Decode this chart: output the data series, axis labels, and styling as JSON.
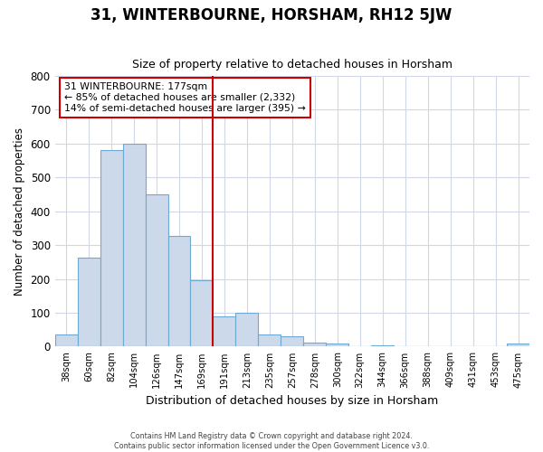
{
  "title": "31, WINTERBOURNE, HORSHAM, RH12 5JW",
  "subtitle": "Size of property relative to detached houses in Horsham",
  "xlabel": "Distribution of detached houses by size in Horsham",
  "ylabel": "Number of detached properties",
  "bar_labels": [
    "38sqm",
    "60sqm",
    "82sqm",
    "104sqm",
    "126sqm",
    "147sqm",
    "169sqm",
    "191sqm",
    "213sqm",
    "235sqm",
    "257sqm",
    "278sqm",
    "300sqm",
    "322sqm",
    "344sqm",
    "366sqm",
    "388sqm",
    "409sqm",
    "431sqm",
    "453sqm",
    "475sqm"
  ],
  "bar_heights": [
    35,
    263,
    580,
    600,
    450,
    327,
    195,
    90,
    100,
    35,
    30,
    12,
    10,
    0,
    5,
    0,
    0,
    0,
    0,
    0,
    8
  ],
  "bar_color": "#ccd9ea",
  "bar_edge_color": "#6fa8d0",
  "vline_x_idx": 7,
  "vline_color": "#cc0000",
  "ylim": [
    0,
    800
  ],
  "yticks": [
    0,
    100,
    200,
    300,
    400,
    500,
    600,
    700,
    800
  ],
  "annotation_text": "31 WINTERBOURNE: 177sqm\n← 85% of detached houses are smaller (2,332)\n14% of semi-detached houses are larger (395) →",
  "annotation_box_color": "#cc0000",
  "footer_line1": "Contains HM Land Registry data © Crown copyright and database right 2024.",
  "footer_line2": "Contains public sector information licensed under the Open Government Licence v3.0.",
  "bg_color": "#ffffff",
  "grid_color": "#d0d8e8"
}
